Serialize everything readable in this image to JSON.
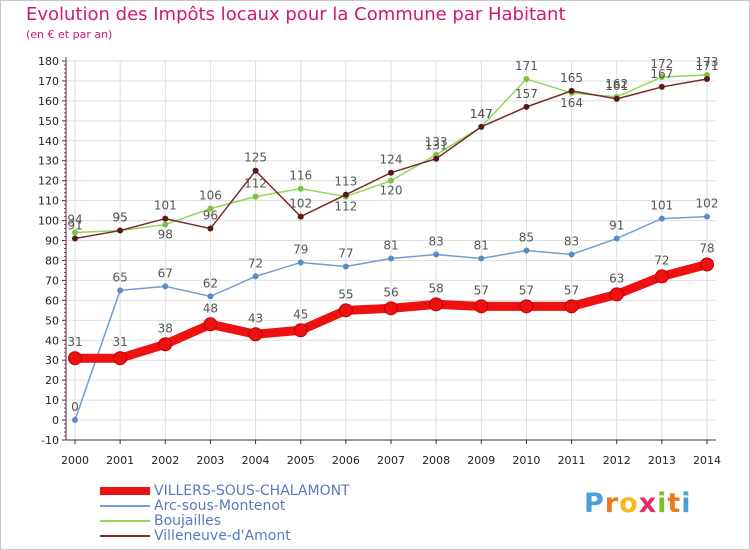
{
  "header": {
    "title": "Evolution des Impôts locaux pour la Commune par Habitant",
    "subtitle": "(en € et par an)"
  },
  "colors": {
    "title": "#d01870",
    "grid": "#dddddd",
    "axis": "#333333",
    "tick_text": "#222222",
    "data_label": "#555555",
    "legend_text": "#5a78c0"
  },
  "logo": {
    "letters": [
      "P",
      "r",
      "o",
      "x",
      "i",
      "t",
      "i"
    ],
    "letter_colors": [
      "#4aa0d8",
      "#e87b1e",
      "#f6b81c",
      "#e03060",
      "#7cbf2c",
      "#e87b1e",
      "#4aa0d8"
    ]
  },
  "chart_data": {
    "type": "line",
    "title": "Evolution des Impôts locaux pour la Commune par Habitant",
    "subtitle": "(en € et par an)",
    "xlabel": "",
    "ylabel": "",
    "x": [
      "2000",
      "2001",
      "2002",
      "2003",
      "2004",
      "2005",
      "2006",
      "2007",
      "2008",
      "2009",
      "2010",
      "2011",
      "2012",
      "2013",
      "2014"
    ],
    "ylim": [
      -10,
      180
    ],
    "yticks": [
      -10,
      0,
      10,
      20,
      30,
      40,
      50,
      60,
      70,
      80,
      90,
      100,
      110,
      120,
      130,
      140,
      150,
      160,
      170,
      180
    ],
    "grid": true,
    "legend_position": "bottom-left",
    "series": [
      {
        "name": "Boujailles",
        "color": "#8ed85a",
        "marker_color": "#7cc244",
        "values": [
          94,
          95,
          98,
          106,
          112,
          116,
          112,
          120,
          133,
          147,
          171,
          164,
          162,
          172,
          173
        ],
        "labels": [
          "94",
          "95",
          "98",
          "106",
          "112",
          "116",
          "112",
          "120",
          "133",
          "147",
          "171",
          "164",
          "162",
          "172",
          "173"
        ],
        "label_position": [
          "above",
          "above",
          "below",
          "above",
          "above",
          "above",
          "below",
          "below",
          "above",
          "above",
          "above",
          "below",
          "above",
          "above",
          "above"
        ]
      },
      {
        "name": "Villeneuve-d'Amont",
        "color": "#7a2a2a",
        "marker_color": "#5a1818",
        "values": [
          91,
          95,
          101,
          96,
          125,
          102,
          113,
          124,
          131,
          147,
          157,
          165,
          161,
          167,
          171
        ],
        "labels": [
          "91",
          "95",
          "101",
          "96",
          "125",
          "102",
          "113",
          "124",
          "131",
          "147",
          "157",
          "165",
          "161",
          "167",
          "171"
        ],
        "label_position": [
          "above",
          "above",
          "above",
          "above",
          "above",
          "above",
          "above",
          "above",
          "above",
          "above",
          "above",
          "above",
          "above",
          "above",
          "above"
        ]
      },
      {
        "name": "Arc-sous-Montenot",
        "color": "#6f9fd2",
        "marker_color": "#5a8cc4",
        "values": [
          0,
          65,
          67,
          62,
          72,
          79,
          77,
          81,
          83,
          81,
          85,
          83,
          91,
          101,
          102
        ],
        "labels": [
          "0",
          "65",
          "67",
          "62",
          "72",
          "79",
          "77",
          "81",
          "83",
          "81",
          "85",
          "83",
          "91",
          "101",
          "102"
        ],
        "label_position": [
          "above",
          "above",
          "above",
          "above",
          "above",
          "above",
          "above",
          "above",
          "above",
          "above",
          "above",
          "above",
          "above",
          "above",
          "above"
        ]
      },
      {
        "name": "VILLERS-SOUS-CHALAMONT",
        "color": "#ee1111",
        "marker_color": "#ee1111",
        "values": [
          31,
          31,
          38,
          48,
          43,
          45,
          55,
          56,
          58,
          57,
          57,
          57,
          63,
          72,
          78
        ],
        "labels": [
          "31",
          "31",
          "38",
          "48",
          "43",
          "45",
          "55",
          "56",
          "58",
          "57",
          "57",
          "57",
          "63",
          "72",
          "78"
        ],
        "label_position": [
          "above",
          "above",
          "above",
          "above",
          "above",
          "above",
          "above",
          "above",
          "above",
          "above",
          "above",
          "above",
          "above",
          "above",
          "above"
        ]
      }
    ],
    "legend": [
      {
        "name": "VILLERS-SOUS-CHALAMONT",
        "color": "#ee1111",
        "weight": "heavy"
      },
      {
        "name": "Arc-sous-Montenot",
        "color": "#6f9fd2",
        "weight": "thin"
      },
      {
        "name": "Boujailles",
        "color": "#8ed85a",
        "weight": "thin"
      },
      {
        "name": "Villeneuve-d'Amont",
        "color": "#7a2a2a",
        "weight": "thin"
      }
    ]
  }
}
